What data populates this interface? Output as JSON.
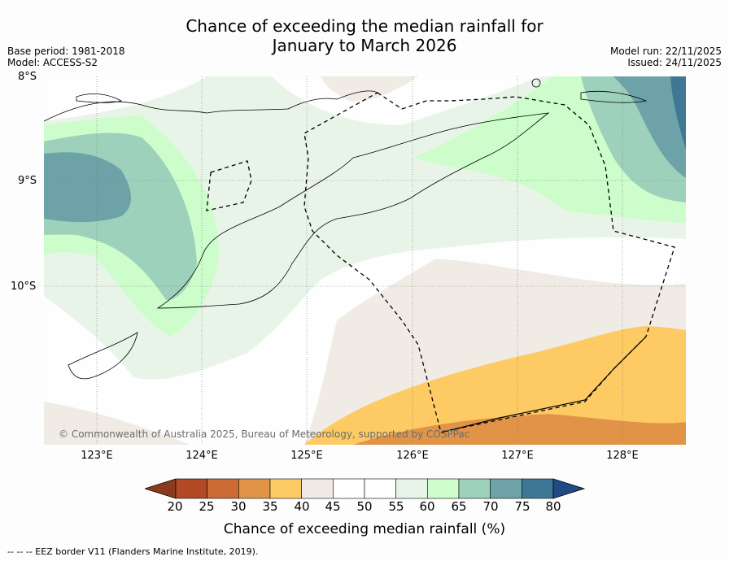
{
  "title": {
    "line1": "Chance of exceeding the median rainfall for",
    "line2": "January to March 2026"
  },
  "meta": {
    "base_period": "Base period: 1981-2018",
    "model": "Model: ACCESS-S2",
    "model_run": "Model run: 22/11/2025",
    "issued": "Issued: 24/11/2025"
  },
  "axes": {
    "lat_labels": [
      "8°S",
      "9°S",
      "10°S"
    ],
    "lon_labels": [
      "123°E",
      "124°E",
      "125°E",
      "126°E",
      "127°E",
      "128°E"
    ]
  },
  "copyright": "© Commonwealth of Australia 2025, Bureau of Meteorology, supported by COSPPac",
  "colorbar": {
    "label": "Chance of exceeding median rainfall (%)",
    "ticks": [
      "20",
      "25",
      "30",
      "35",
      "40",
      "45",
      "50",
      "55",
      "60",
      "65",
      "70",
      "75",
      "80"
    ],
    "colors": {
      "under": "#8b3a1e",
      "c20_25": "#b24a27",
      "c25_30": "#cc6a34",
      "c30_35": "#e19447",
      "c35_40": "#fdca63",
      "c40_45": "#f1ebe5",
      "c45_50": "#fdfefd",
      "c50_55": "#fdfefd",
      "c55_60": "#e9f4e8",
      "c60_65": "#ccfdcb",
      "c65_70": "#9dd1bb",
      "c70_75": "#6da3a8",
      "c75_80": "#3f7895",
      "over": "#204a83"
    }
  },
  "footnote": "--  --  -- EEZ border V11 (Flanders Marine Institute, 2019)."
}
